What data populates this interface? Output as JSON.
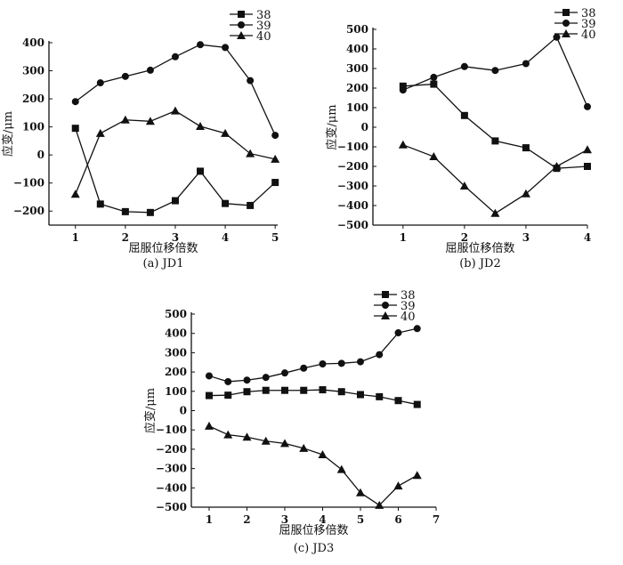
{
  "chart_data": [
    {
      "type": "line",
      "title": "(a) JD1",
      "xlabel": "屈服位移倍数",
      "ylabel": "应变/μm",
      "xlim": [
        0.47,
        5.05
      ],
      "ylim": [
        -250,
        400
      ],
      "xticks": [
        1,
        2,
        3,
        4,
        5
      ],
      "yticks": [
        -200,
        -100,
        0,
        100,
        200,
        300,
        400
      ],
      "legend": "top-right",
      "x": [
        1,
        1.5,
        2,
        2.5,
        3,
        3.5,
        4,
        4.5,
        5
      ],
      "series": [
        {
          "name": "38",
          "marker": "square",
          "values": [
            95,
            -175,
            -202,
            -205,
            -163,
            -58,
            -173,
            -180,
            -98
          ]
        },
        {
          "name": "39",
          "marker": "circle",
          "values": [
            190,
            257,
            280,
            302,
            350,
            393,
            383,
            265,
            70
          ]
        },
        {
          "name": "40",
          "marker": "triangle",
          "values": [
            -140,
            77,
            125,
            120,
            157,
            102,
            77,
            5,
            -15
          ]
        }
      ]
    },
    {
      "type": "line",
      "title": "(b) JD2",
      "xlabel": "屈服位移倍数",
      "ylabel": "应变/μm",
      "xlim": [
        0.51,
        4.0
      ],
      "ylim": [
        -500,
        500
      ],
      "xticks": [
        1,
        2,
        3,
        4
      ],
      "yticks": [
        -500,
        -400,
        -300,
        -200,
        -100,
        0,
        100,
        200,
        300,
        400,
        500
      ],
      "legend": "top-right",
      "x": [
        1,
        1.5,
        2,
        2.5,
        3,
        3.5,
        4
      ],
      "series": [
        {
          "name": "38",
          "marker": "square",
          "values": [
            210,
            220,
            60,
            -70,
            -105,
            -210,
            -200
          ]
        },
        {
          "name": "39",
          "marker": "circle",
          "values": [
            190,
            255,
            310,
            290,
            325,
            460,
            105
          ]
        },
        {
          "name": "40",
          "marker": "triangle",
          "values": [
            -90,
            -150,
            -300,
            -440,
            -340,
            -200,
            -115
          ]
        }
      ]
    },
    {
      "type": "line",
      "title": "(c) JD3",
      "xlabel": "屈服位移倍数",
      "ylabel": "应变/μm",
      "xlim": [
        0.53,
        7.0
      ],
      "ylim": [
        -500,
        500
      ],
      "xticks": [
        1,
        2,
        3,
        4,
        5,
        6,
        7
      ],
      "yticks": [
        -500,
        -400,
        -300,
        -200,
        -100,
        0,
        100,
        200,
        300,
        400,
        500
      ],
      "legend": "top-right",
      "x": [
        1,
        1.5,
        2,
        2.5,
        3,
        3.5,
        4,
        4.5,
        5,
        5.5,
        6,
        6.5
      ],
      "series": [
        {
          "name": "38",
          "marker": "square",
          "values": [
            78,
            80,
            98,
            105,
            105,
            105,
            108,
            98,
            83,
            72,
            52,
            32
          ]
        },
        {
          "name": "39",
          "marker": "circle",
          "values": [
            180,
            150,
            158,
            172,
            195,
            220,
            242,
            245,
            253,
            290,
            403,
            425
          ]
        },
        {
          "name": "40",
          "marker": "triangle",
          "values": [
            -80,
            -125,
            -137,
            -158,
            -170,
            -195,
            -228,
            -305,
            -425,
            -490,
            -390,
            -335
          ]
        }
      ]
    }
  ]
}
